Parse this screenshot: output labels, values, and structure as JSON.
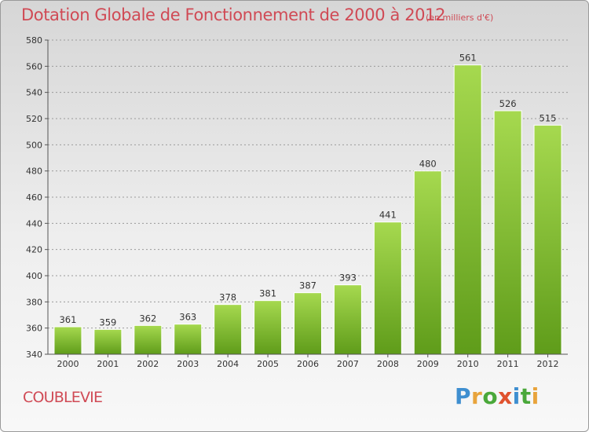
{
  "header": {
    "title": "Dotation Globale de Fonctionnement de 2000 à 2012",
    "unit": "(en milliers d'€)"
  },
  "footer": {
    "city": "COUBLEVIE",
    "brand": "Proxiti"
  },
  "colors": {
    "title": "#d04a55",
    "bar_light": "#9fd24a",
    "bar_dark": "#5f9c1a",
    "gridline": "#8a8a8a"
  },
  "chart_data": {
    "type": "bar",
    "title": "Dotation Globale de Fonctionnement de 2000 à 2012",
    "xlabel": "",
    "ylabel": "",
    "categories": [
      "2000",
      "2001",
      "2002",
      "2003",
      "2004",
      "2005",
      "2006",
      "2007",
      "2008",
      "2009",
      "2010",
      "2011",
      "2012"
    ],
    "values": [
      361,
      359,
      362,
      363,
      378,
      381,
      387,
      393,
      441,
      480,
      561,
      526,
      515
    ],
    "ylim": [
      340,
      580
    ],
    "yticks": [
      340,
      360,
      380,
      400,
      420,
      440,
      460,
      480,
      500,
      520,
      540,
      560,
      580
    ],
    "grid": true,
    "legend": "none"
  }
}
